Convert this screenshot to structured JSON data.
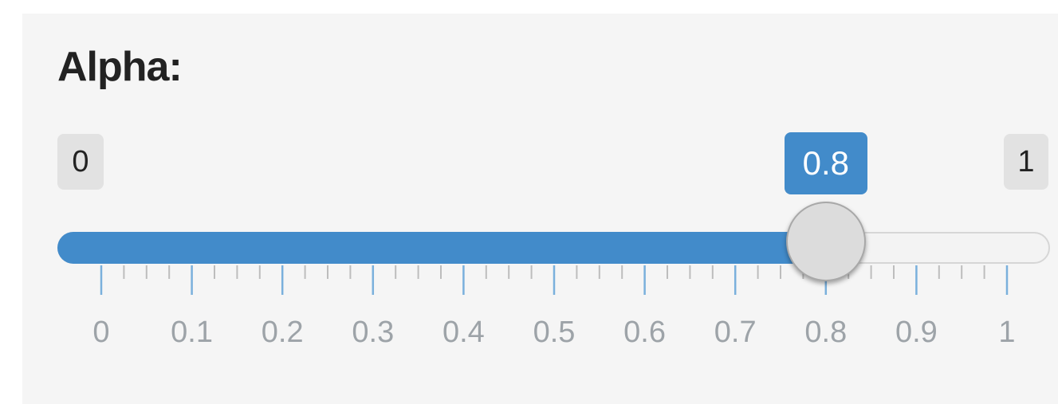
{
  "input": {
    "label": "Alpha:",
    "min": 0,
    "max": 1,
    "value": 0.8,
    "min_label": "0",
    "max_label": "1",
    "value_label": "0.8",
    "grid_labels": [
      "0",
      "0.1",
      "0.2",
      "0.3",
      "0.4",
      "0.5",
      "0.6",
      "0.7",
      "0.8",
      "0.9",
      "1"
    ]
  },
  "colors": {
    "accent": "#428bca",
    "panel": "#f5f5f5",
    "grid_text": "#9da3a8"
  }
}
